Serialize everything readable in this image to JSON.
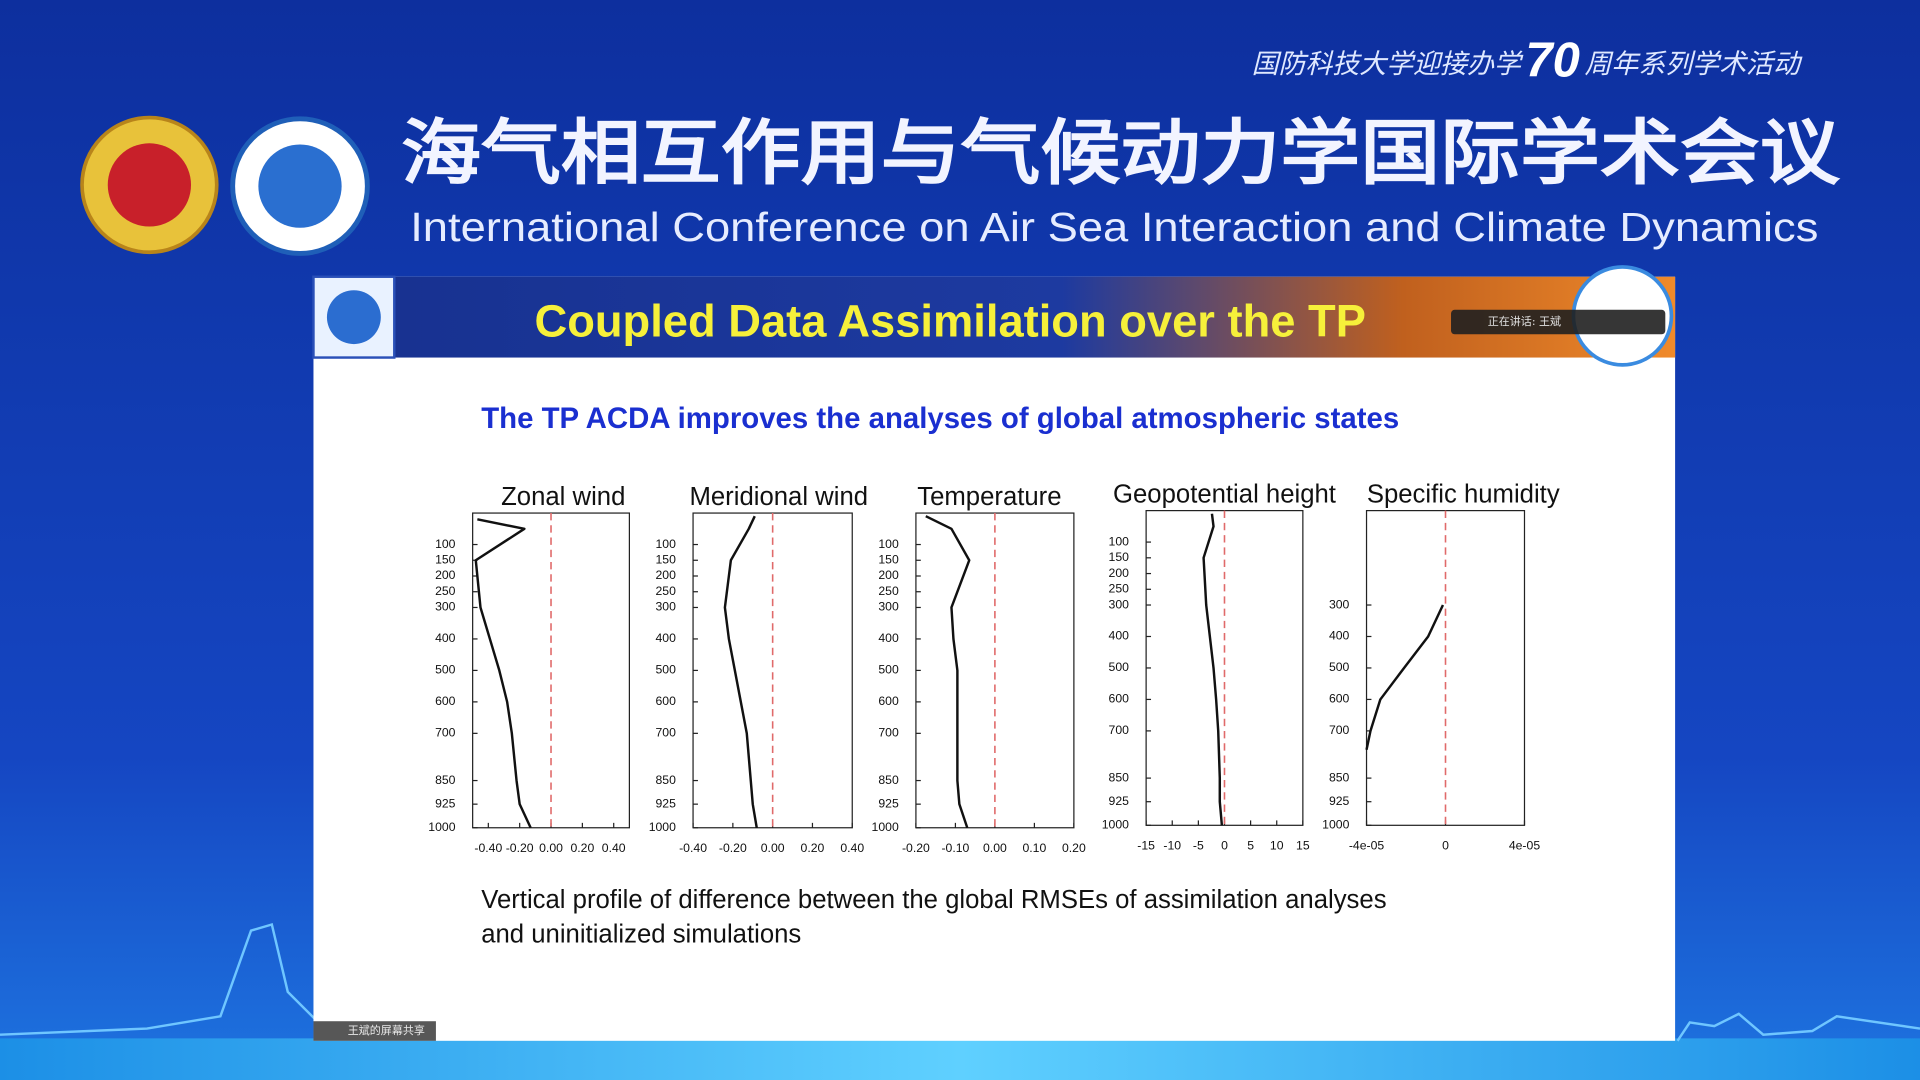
{
  "header": {
    "event": "国防科技大学迎接办学",
    "anniversary": "70",
    "event_suffix": "周年系列学术活动",
    "title_zh": "海气相互作用与气候动力学国际学术会议",
    "title_en": "International Conference on Air Sea Interaction and Climate Dynamics"
  },
  "slide": {
    "title": "Coupled Data Assimilation over the TP",
    "subtitle": "The TP ACDA improves the analyses of global atmospheric states",
    "caption": [
      "Vertical profile of difference between the global RMSEs of assimilation analyses",
      "and uninitialized simulations"
    ]
  },
  "overlays": {
    "speaker": "正在讲话: 王斌",
    "share": "王斌的屏幕共享"
  },
  "chart_data": [
    {
      "type": "line",
      "title": "Zonal wind",
      "levels": [
        20,
        50,
        150,
        300,
        400,
        500,
        600,
        700,
        850,
        925,
        1000
      ],
      "series": [
        {
          "color": "#111111",
          "values": [
            -0.47,
            -0.17,
            -0.48,
            -0.45,
            -0.39,
            -0.33,
            -0.28,
            -0.25,
            -0.22,
            -0.2,
            -0.13
          ]
        }
      ],
      "xlim": [
        -0.5,
        0.5
      ],
      "xticks": [
        {
          "value": -0.4,
          "label": "-0.40"
        },
        {
          "value": -0.2,
          "label": "-0.20"
        },
        {
          "value": 0,
          "label": "0.00"
        },
        {
          "value": 0.2,
          "label": "0.20"
        },
        {
          "value": 0.4,
          "label": "0.40"
        }
      ],
      "ylim": [
        1000,
        0
      ],
      "yticks": [
        100,
        150,
        200,
        250,
        300,
        400,
        500,
        600,
        700,
        850,
        925,
        1000
      ],
      "reference_x": 0,
      "reference_color": "#e06a6a"
    },
    {
      "type": "line",
      "title": "Meridional wind",
      "levels": [
        10,
        50,
        150,
        300,
        400,
        500,
        600,
        700,
        850,
        925,
        1000
      ],
      "series": [
        {
          "color": "#111111",
          "values": [
            -0.09,
            -0.12,
            -0.21,
            -0.24,
            -0.22,
            -0.19,
            -0.16,
            -0.13,
            -0.11,
            -0.1,
            -0.08
          ]
        }
      ],
      "xlim": [
        -0.4,
        0.4
      ],
      "xticks": [
        {
          "value": -0.4,
          "label": "-0.40"
        },
        {
          "value": -0.2,
          "label": "-0.20"
        },
        {
          "value": 0,
          "label": "0.00"
        },
        {
          "value": 0.2,
          "label": "0.20"
        },
        {
          "value": 0.4,
          "label": "0.40"
        }
      ],
      "ylim": [
        1000,
        0
      ],
      "yticks": [
        100,
        150,
        200,
        250,
        300,
        400,
        500,
        600,
        700,
        850,
        925,
        1000
      ],
      "reference_x": 0,
      "reference_color": "#e06a6a"
    },
    {
      "type": "line",
      "title": "Temperature",
      "levels": [
        10,
        50,
        150,
        300,
        400,
        500,
        600,
        700,
        850,
        925,
        1000
      ],
      "series": [
        {
          "color": "#111111",
          "values": [
            -0.175,
            -0.11,
            -0.065,
            -0.11,
            -0.105,
            -0.095,
            -0.095,
            -0.095,
            -0.095,
            -0.09,
            -0.07
          ]
        }
      ],
      "xlim": [
        -0.2,
        0.2
      ],
      "xticks": [
        {
          "value": -0.2,
          "label": "-0.20"
        },
        {
          "value": -0.1,
          "label": "-0.10"
        },
        {
          "value": 0,
          "label": "0.00"
        },
        {
          "value": 0.1,
          "label": "0.10"
        },
        {
          "value": 0.2,
          "label": "0.20"
        }
      ],
      "ylim": [
        1000,
        0
      ],
      "yticks": [
        100,
        150,
        200,
        250,
        300,
        400,
        500,
        600,
        700,
        850,
        925,
        1000
      ],
      "reference_x": 0,
      "reference_color": "#e06a6a"
    },
    {
      "type": "line",
      "title": "Geopotential height",
      "levels": [
        10,
        50,
        150,
        300,
        400,
        500,
        600,
        700,
        850,
        925,
        1000
      ],
      "series": [
        {
          "color": "#111111",
          "values": [
            -2.4,
            -2.1,
            -4,
            -3.5,
            -2.8,
            -2.1,
            -1.6,
            -1.2,
            -0.9,
            -0.9,
            -0.5
          ]
        }
      ],
      "xlim": [
        -15,
        15
      ],
      "xticks": [
        -15,
        -10,
        -5,
        0,
        5,
        10,
        15
      ],
      "ylim": [
        1000,
        0
      ],
      "yticks": [
        100,
        150,
        200,
        250,
        300,
        400,
        500,
        600,
        700,
        850,
        925,
        1000
      ],
      "reference_x": 0,
      "reference_color": "#e06a6a"
    },
    {
      "type": "line",
      "title": "Specific humidity",
      "levels": [
        300,
        400,
        500,
        600,
        700,
        760
      ],
      "series": [
        {
          "color": "#111111",
          "values": [
            -1.3e-06,
            -8.8e-06,
            -2.1e-05,
            -3.3e-05,
            -3.8e-05,
            -4e-05
          ]
        }
      ],
      "xlim": [
        -4e-05,
        4e-05
      ],
      "xticks": [
        {
          "value": -4e-05,
          "label": "-4e-05"
        },
        0,
        {
          "value": 4e-05,
          "label": "4e-05"
        }
      ],
      "ylim": [
        1000,
        0
      ],
      "yticks": [
        300,
        400,
        500,
        600,
        700,
        850,
        925,
        1000
      ],
      "reference_x": 0,
      "reference_color": "#e06a6a"
    }
  ]
}
